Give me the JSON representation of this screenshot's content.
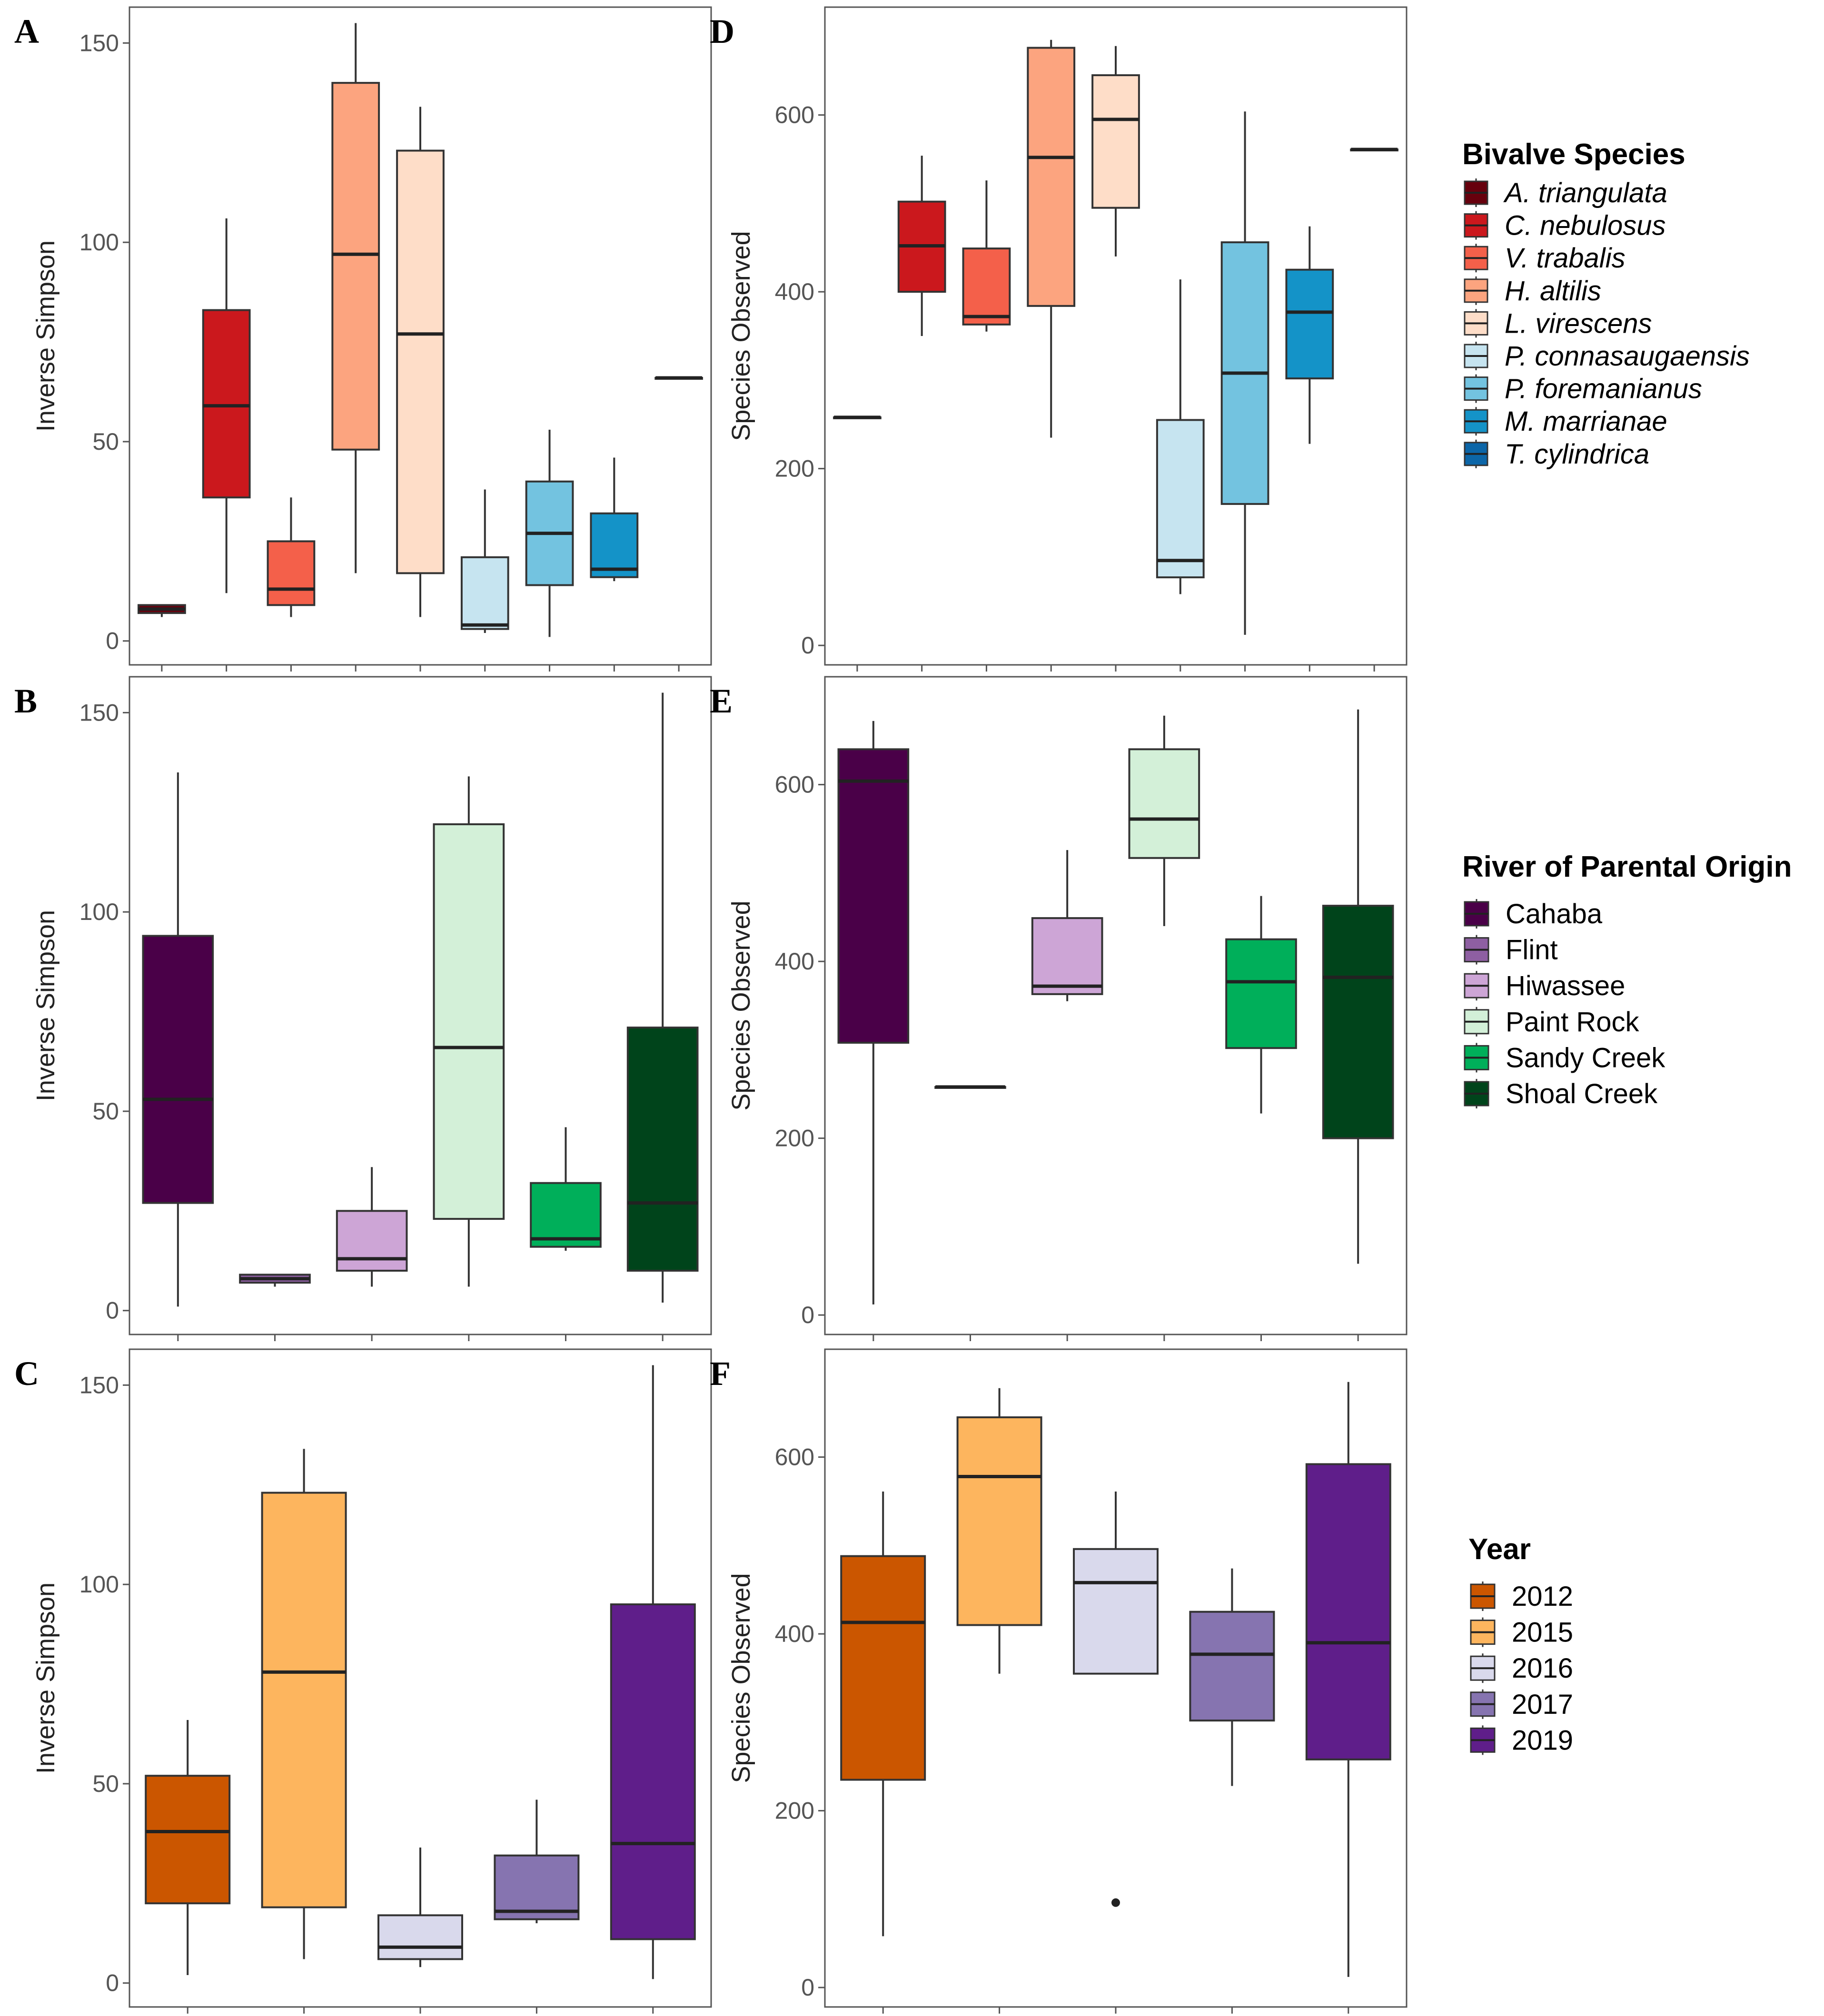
{
  "chart_data": [
    {
      "panel": "A",
      "type": "box",
      "ylabel": "Inverse Simpson",
      "xlabel": "",
      "ylim": [
        -6,
        159
      ],
      "yticks": [
        0,
        50,
        100,
        150
      ],
      "legend": "Bivalve Species",
      "boxes": [
        {
          "category": "A. triangulata",
          "color": "#67000D",
          "min": 6,
          "q1": 7,
          "median": 8,
          "q3": 9,
          "max": 9
        },
        {
          "category": "C. nebulosus",
          "color": "#CB181D",
          "min": 12,
          "q1": 36,
          "median": 59,
          "q3": 83,
          "max": 106
        },
        {
          "category": "V. trabalis",
          "color": "#F4604A",
          "min": 6,
          "q1": 9,
          "median": 13,
          "q3": 25,
          "max": 36
        },
        {
          "category": "H. altilis",
          "color": "#FCA47F",
          "min": 17,
          "q1": 48,
          "median": 97,
          "q3": 140,
          "max": 155
        },
        {
          "category": "L. virescens",
          "color": "#FEDDC8",
          "min": 6,
          "q1": 17,
          "median": 77,
          "q3": 123,
          "max": 134
        },
        {
          "category": "P. connasaugaensis",
          "color": "#C6E4F0",
          "min": 2,
          "q1": 3,
          "median": 4,
          "q3": 21,
          "max": 38
        },
        {
          "category": "P. foremanianus",
          "color": "#73C3E0",
          "min": 1,
          "q1": 14,
          "median": 27,
          "q3": 40,
          "max": 53
        },
        {
          "category": "M. marrianae",
          "color": "#1493C8",
          "min": 15,
          "q1": 16,
          "median": 18,
          "q3": 32,
          "max": 46
        },
        {
          "category": "T. cylindrica",
          "color": "#0C66A8",
          "min": 66,
          "q1": 66,
          "median": 66,
          "q3": 66,
          "max": 66
        }
      ]
    },
    {
      "panel": "B",
      "type": "box",
      "ylabel": "Inverse Simpson",
      "xlabel": "",
      "ylim": [
        -6,
        159
      ],
      "yticks": [
        0,
        50,
        100,
        150
      ],
      "legend": "River of Parental Origin",
      "boxes": [
        {
          "category": "Cahaba",
          "color": "#4A0048",
          "min": 1,
          "q1": 27,
          "median": 53,
          "q3": 94,
          "max": 135
        },
        {
          "category": "Flint",
          "color": "#8E5FA2",
          "min": 6,
          "q1": 7,
          "median": 8,
          "q3": 9,
          "max": 9
        },
        {
          "category": "Hiwassee",
          "color": "#CDA5D6",
          "min": 6,
          "q1": 10,
          "median": 13,
          "q3": 25,
          "max": 36
        },
        {
          "category": "Paint Rock",
          "color": "#D3F0D8",
          "min": 6,
          "q1": 23,
          "median": 66,
          "q3": 122,
          "max": 134
        },
        {
          "category": "Sandy Creek",
          "color": "#00AF5A",
          "min": 15,
          "q1": 16,
          "median": 18,
          "q3": 32,
          "max": 46
        },
        {
          "category": "Shoal Creek",
          "color": "#00441B",
          "min": 2,
          "q1": 10,
          "median": 27,
          "q3": 71,
          "max": 155
        }
      ]
    },
    {
      "panel": "C",
      "type": "box",
      "ylabel": "Inverse Simpson",
      "xlabel": "",
      "ylim": [
        -6,
        159
      ],
      "yticks": [
        0,
        50,
        100,
        150
      ],
      "legend": "Year",
      "boxes": [
        {
          "category": "2012",
          "color": "#CB5600",
          "min": 2,
          "q1": 20,
          "median": 38,
          "q3": 52,
          "max": 66
        },
        {
          "category": "2015",
          "color": "#FDB55E",
          "min": 6,
          "q1": 19,
          "median": 78,
          "q3": 123,
          "max": 134
        },
        {
          "category": "2016",
          "color": "#D9D9EC",
          "min": 4,
          "q1": 6,
          "median": 9,
          "q3": 17,
          "max": 34
        },
        {
          "category": "2017",
          "color": "#8674B0",
          "min": 15,
          "q1": 16,
          "median": 18,
          "q3": 32,
          "max": 46
        },
        {
          "category": "2019",
          "color": "#5F1E8A",
          "min": 1,
          "q1": 11,
          "median": 35,
          "q3": 95,
          "max": 155
        }
      ]
    },
    {
      "panel": "D",
      "type": "box",
      "ylabel": "Species Observed",
      "xlabel": "",
      "ylim": [
        -22,
        722
      ],
      "yticks": [
        0,
        200,
        400,
        600
      ],
      "legend": "Bivalve Species",
      "boxes": [
        {
          "category": "A. triangulata",
          "color": "#67000D",
          "min": 258,
          "q1": 258,
          "median": 258,
          "q3": 258,
          "max": 258
        },
        {
          "category": "C. nebulosus",
          "color": "#CB181D",
          "min": 350,
          "q1": 400,
          "median": 452,
          "q3": 502,
          "max": 554
        },
        {
          "category": "V. trabalis",
          "color": "#F4604A",
          "min": 355,
          "q1": 363,
          "median": 372,
          "q3": 449,
          "max": 526
        },
        {
          "category": "H. altilis",
          "color": "#FCA47F",
          "min": 235,
          "q1": 384,
          "median": 552,
          "q3": 676,
          "max": 685
        },
        {
          "category": "L. virescens",
          "color": "#FEDDC8",
          "min": 440,
          "q1": 495,
          "median": 595,
          "q3": 645,
          "max": 678
        },
        {
          "category": "P. connasaugaensis",
          "color": "#C6E4F0",
          "min": 58,
          "q1": 77,
          "median": 96,
          "q3": 255,
          "max": 414
        },
        {
          "category": "P. foremanianus",
          "color": "#73C3E0",
          "min": 12,
          "q1": 160,
          "median": 308,
          "q3": 456,
          "max": 604
        },
        {
          "category": "M. marrianae",
          "color": "#1493C8",
          "min": 228,
          "q1": 302,
          "median": 377,
          "q3": 425,
          "max": 474
        },
        {
          "category": "T. cylindrica",
          "color": "#0C66A8",
          "min": 561,
          "q1": 561,
          "median": 561,
          "q3": 561,
          "max": 561
        }
      ]
    },
    {
      "panel": "E",
      "type": "box",
      "ylabel": "Species Observed",
      "xlabel": "",
      "ylim": [
        -22,
        722
      ],
      "yticks": [
        0,
        200,
        400,
        600
      ],
      "legend": "River of Parental Origin",
      "boxes": [
        {
          "category": "Cahaba",
          "color": "#4A0048",
          "min": 12,
          "q1": 308,
          "median": 604,
          "q3": 640,
          "max": 672
        },
        {
          "category": "Flint",
          "color": "#8E5FA2",
          "min": 258,
          "q1": 258,
          "median": 258,
          "q3": 258,
          "max": 258
        },
        {
          "category": "Hiwassee",
          "color": "#CDA5D6",
          "min": 355,
          "q1": 363,
          "median": 372,
          "q3": 449,
          "max": 526
        },
        {
          "category": "Paint Rock",
          "color": "#D3F0D8",
          "min": 440,
          "q1": 517,
          "median": 561,
          "q3": 640,
          "max": 678
        },
        {
          "category": "Sandy Creek",
          "color": "#00AF5A",
          "min": 228,
          "q1": 302,
          "median": 377,
          "q3": 425,
          "max": 474
        },
        {
          "category": "Shoal Creek",
          "color": "#00441B",
          "min": 58,
          "q1": 200,
          "median": 382,
          "q3": 463,
          "max": 685
        }
      ]
    },
    {
      "panel": "F",
      "type": "box",
      "ylabel": "Species Observed",
      "xlabel": "",
      "ylim": [
        -22,
        722
      ],
      "yticks": [
        0,
        200,
        400,
        600
      ],
      "legend": "Year",
      "boxes": [
        {
          "category": "2012",
          "color": "#CB5600",
          "min": 58,
          "q1": 235,
          "median": 413,
          "q3": 488,
          "max": 561
        },
        {
          "category": "2015",
          "color": "#FDB55E",
          "min": 355,
          "q1": 410,
          "median": 578,
          "q3": 645,
          "max": 678
        },
        {
          "category": "2016",
          "color": "#D9D9EC",
          "min": 355,
          "q1": 355,
          "median": 458,
          "q3": 496,
          "max": 561,
          "outliers": [
            96
          ]
        },
        {
          "category": "2017",
          "color": "#8674B0",
          "min": 228,
          "q1": 302,
          "median": 377,
          "q3": 425,
          "max": 474
        },
        {
          "category": "2019",
          "color": "#5F1E8A",
          "min": 12,
          "q1": 258,
          "median": 390,
          "q3": 592,
          "max": 685
        }
      ]
    }
  ],
  "legends": [
    {
      "id": "species",
      "title": "Bivalve Species",
      "italic": true,
      "entries": [
        {
          "label": "A. triangulata",
          "color": "#67000D"
        },
        {
          "label": "C. nebulosus",
          "color": "#CB181D"
        },
        {
          "label": "V. trabalis",
          "color": "#F4604A"
        },
        {
          "label": "H. altilis",
          "color": "#FCA47F"
        },
        {
          "label": "L. virescens",
          "color": "#FEDDC8"
        },
        {
          "label": "P. connasaugaensis",
          "color": "#C6E4F0"
        },
        {
          "label": "P. foremanianus",
          "color": "#73C3E0"
        },
        {
          "label": "M. marrianae",
          "color": "#1493C8"
        },
        {
          "label": "T. cylindrica",
          "color": "#0C66A8"
        }
      ]
    },
    {
      "id": "river",
      "title": "River of Parental Origin",
      "italic": false,
      "entries": [
        {
          "label": "Cahaba",
          "color": "#4A0048"
        },
        {
          "label": "Flint",
          "color": "#8E5FA2"
        },
        {
          "label": "Hiwassee",
          "color": "#CDA5D6"
        },
        {
          "label": "Paint Rock",
          "color": "#D3F0D8"
        },
        {
          "label": "Sandy Creek",
          "color": "#00AF5A"
        },
        {
          "label": "Shoal Creek",
          "color": "#00441B"
        }
      ]
    },
    {
      "id": "year",
      "title": "Year",
      "italic": false,
      "entries": [
        {
          "label": "2012",
          "color": "#CB5600"
        },
        {
          "label": "2015",
          "color": "#FDB55E"
        },
        {
          "label": "2016",
          "color": "#D9D9EC"
        },
        {
          "label": "2017",
          "color": "#8674B0"
        },
        {
          "label": "2019",
          "color": "#5F1E8A"
        }
      ]
    }
  ]
}
